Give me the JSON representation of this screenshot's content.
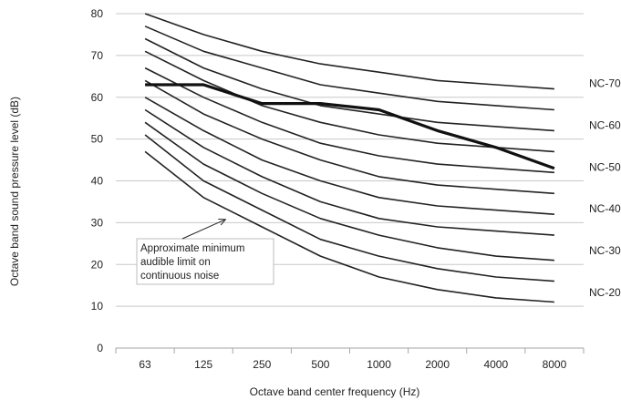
{
  "chart_data": {
    "type": "line",
    "title": "",
    "xlabel": "Octave band center frequency (Hz)",
    "ylabel": "Octave band sound pressure level (dB)",
    "categories": [
      "63",
      "125",
      "250",
      "500",
      "1000",
      "2000",
      "4000",
      "8000"
    ],
    "ylim": [
      0,
      80
    ],
    "yticks": [
      0,
      10,
      20,
      30,
      40,
      50,
      60,
      70,
      80
    ],
    "grid": true,
    "legend": "none",
    "curve_color": "#222222",
    "grid_color": "#c8c8c8",
    "series": [
      {
        "name": "",
        "values": [
          47,
          36,
          29,
          22,
          17,
          14,
          12,
          11
        ]
      },
      {
        "name": "NC-20",
        "values": [
          51,
          40,
          33,
          26,
          22,
          19,
          17,
          16
        ]
      },
      {
        "name": "",
        "values": [
          54,
          44,
          37,
          31,
          27,
          24,
          22,
          21
        ]
      },
      {
        "name": "NC-30",
        "values": [
          57,
          48,
          41,
          35,
          31,
          29,
          28,
          27
        ]
      },
      {
        "name": "",
        "values": [
          60,
          52,
          45,
          40,
          36,
          34,
          33,
          32
        ]
      },
      {
        "name": "NC-40",
        "values": [
          64,
          56,
          50,
          45,
          41,
          39,
          38,
          37
        ]
      },
      {
        "name": "",
        "values": [
          67,
          60,
          54,
          49,
          46,
          44,
          43,
          42
        ]
      },
      {
        "name": "NC-50",
        "values": [
          71,
          64,
          58,
          54,
          51,
          49,
          48,
          47
        ]
      },
      {
        "name": "",
        "values": [
          74,
          67,
          62,
          58,
          56,
          54,
          53,
          52
        ]
      },
      {
        "name": "NC-60",
        "values": [
          77,
          71,
          67,
          63,
          61,
          59,
          58,
          57
        ]
      },
      {
        "name": "NC-70",
        "values": [
          80,
          75,
          71,
          68,
          66,
          64,
          63,
          62
        ]
      }
    ],
    "bold_series": {
      "name": "",
      "values": [
        63,
        63,
        58.5,
        58.5,
        57,
        52,
        48,
        43
      ]
    },
    "nc_labels": [
      {
        "text": "NC-70",
        "y": 62
      },
      {
        "text": "NC-60",
        "y": 52
      },
      {
        "text": "NC-50",
        "y": 42
      },
      {
        "text": "NC-40",
        "y": 32
      },
      {
        "text": "NC-30",
        "y": 22
      },
      {
        "text": "NC-20",
        "y": 12
      }
    ],
    "annotation": {
      "lines": [
        "Approximate minimum",
        "audible limit  on",
        "continuous noise"
      ],
      "arrow_target": {
        "x": "250",
        "y": 31
      }
    }
  }
}
